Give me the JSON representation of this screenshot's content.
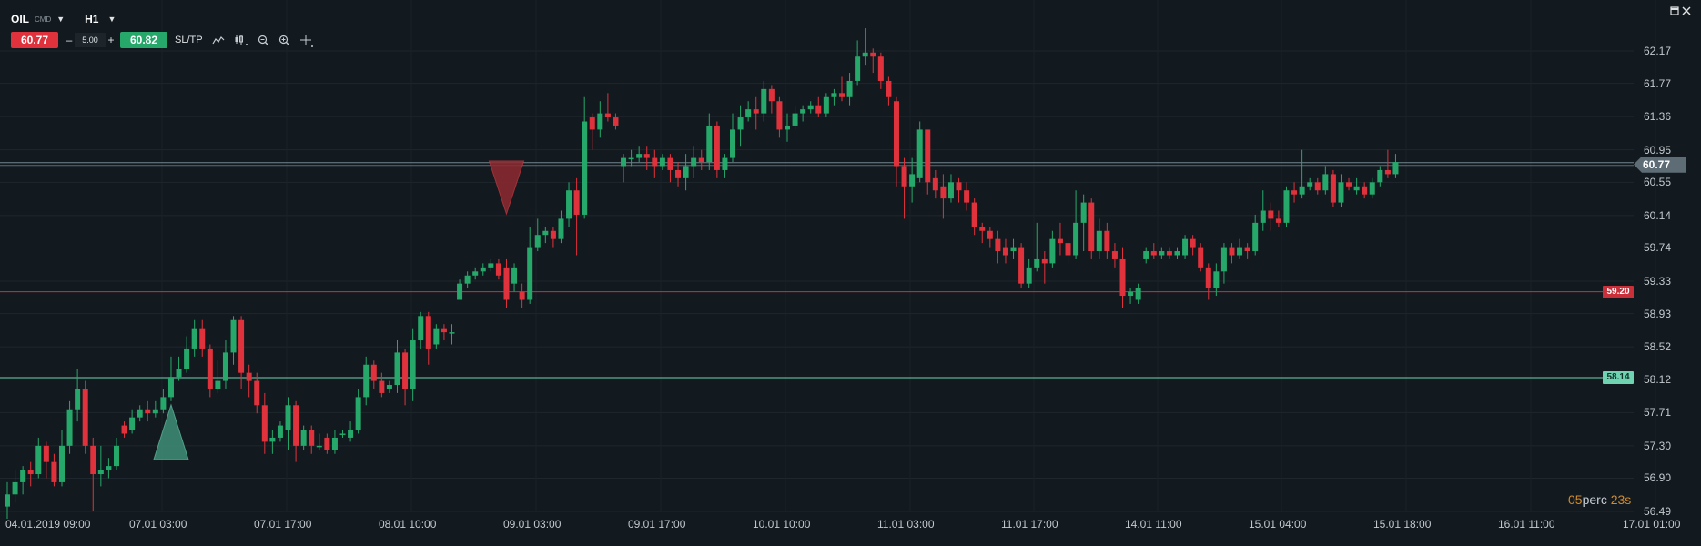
{
  "instrument": {
    "symbol": "OIL",
    "market": "CMD",
    "timeframe": "H1"
  },
  "trade_panel": {
    "sell_price": "60.77",
    "minus": "–",
    "quantity": "5.00",
    "plus": "+",
    "buy_price": "60.82",
    "sltp_label": "SL/TP"
  },
  "toolbar_icons": [
    "chart-type-icon",
    "indicators-icon",
    "zoom-out-icon",
    "zoom-in-icon",
    "crosshair-icon"
  ],
  "window_icons": [
    "maximize-icon",
    "close-icon"
  ],
  "countdown": {
    "minutes": "05",
    "minutes_unit": "perc",
    "seconds": "23s"
  },
  "current_price": "60.77",
  "colors": {
    "background": "#131a1f",
    "up": "#26a86a",
    "down": "#e0323c",
    "neutral_line": "#8aa0aa",
    "support_line": "#6fd3b2",
    "resistance_line": "#c9303a"
  },
  "chart_data": {
    "type": "candlestick",
    "price_axis_ticks": [
      "62.17",
      "61.77",
      "61.36",
      "60.95",
      "60.55",
      "60.14",
      "59.74",
      "59.33",
      "58.93",
      "58.52",
      "58.12",
      "57.71",
      "57.30",
      "56.90",
      "56.49"
    ],
    "time_axis_labels": [
      "04.01.2019 09:00",
      "07.01 03:00",
      "07.01 17:00",
      "08.01 10:00",
      "09.01 03:00",
      "09.01 17:00",
      "10.01 10:00",
      "11.01 03:00",
      "11.01 17:00",
      "14.01 11:00",
      "15.01 04:00",
      "15.01 18:00",
      "16.01 11:00",
      "17.01 01:00"
    ],
    "ylim": [
      56.49,
      62.3
    ],
    "horizontal_lines": [
      {
        "kind": "current",
        "price": 60.77,
        "label": "60.77"
      },
      {
        "kind": "resistance",
        "price": 59.2,
        "label": "59.20"
      },
      {
        "kind": "support",
        "price": 58.14,
        "label": "58.14"
      }
    ],
    "signals": [
      {
        "type": "buy",
        "index": 21
      },
      {
        "type": "sell",
        "index": 64
      }
    ],
    "candles": [
      [
        56.55,
        56.7,
        56.4,
        56.85
      ],
      [
        56.7,
        56.85,
        56.6,
        57.0
      ],
      [
        56.85,
        57.0,
        56.7,
        57.05
      ],
      [
        57.0,
        56.95,
        56.8,
        57.1
      ],
      [
        56.95,
        57.3,
        56.9,
        57.4
      ],
      [
        57.3,
        57.1,
        56.9,
        57.35
      ],
      [
        57.1,
        56.85,
        56.8,
        57.2
      ],
      [
        56.85,
        57.3,
        56.8,
        57.5
      ],
      [
        57.3,
        57.75,
        57.2,
        57.85
      ],
      [
        57.75,
        58.0,
        57.6,
        58.25
      ],
      [
        58.0,
        57.3,
        57.2,
        58.1
      ],
      [
        57.3,
        56.95,
        56.5,
        57.4
      ],
      [
        56.95,
        57.0,
        56.8,
        57.3
      ],
      [
        57.0,
        57.05,
        56.9,
        57.15
      ],
      [
        57.05,
        57.3,
        57.0,
        57.4
      ],
      [
        57.55,
        57.45,
        57.4,
        57.6
      ],
      [
        57.5,
        57.65,
        57.45,
        57.75
      ],
      [
        57.65,
        57.75,
        57.6,
        57.8
      ],
      [
        57.75,
        57.7,
        57.6,
        57.85
      ],
      [
        57.7,
        57.75,
        57.65,
        57.85
      ],
      [
        57.75,
        57.9,
        57.7,
        58.0
      ],
      [
        57.9,
        58.15,
        57.85,
        58.4
      ],
      [
        58.15,
        58.25,
        58.1,
        58.4
      ],
      [
        58.25,
        58.5,
        58.2,
        58.65
      ],
      [
        58.5,
        58.75,
        58.4,
        58.85
      ],
      [
        58.75,
        58.5,
        58.4,
        58.85
      ],
      [
        58.5,
        58.0,
        57.9,
        58.55
      ],
      [
        58.0,
        58.1,
        57.95,
        58.35
      ],
      [
        58.1,
        58.45,
        58.0,
        58.6
      ],
      [
        58.45,
        58.85,
        58.3,
        58.9
      ],
      [
        58.85,
        58.2,
        58.0,
        58.9
      ],
      [
        58.2,
        58.1,
        57.9,
        58.3
      ],
      [
        58.1,
        57.8,
        57.7,
        58.2
      ],
      [
        57.8,
        57.35,
        57.2,
        57.95
      ],
      [
        57.35,
        57.4,
        57.2,
        57.5
      ],
      [
        57.4,
        57.55,
        57.35,
        57.6
      ],
      [
        57.5,
        57.8,
        57.25,
        57.9
      ],
      [
        57.8,
        57.3,
        57.1,
        57.85
      ],
      [
        57.3,
        57.5,
        57.25,
        57.55
      ],
      [
        57.5,
        57.3,
        57.2,
        57.55
      ],
      [
        57.3,
        57.3,
        57.25,
        57.45
      ],
      [
        57.4,
        57.25,
        57.2,
        57.45
      ],
      [
        57.25,
        57.4,
        57.2,
        57.5
      ],
      [
        57.45,
        57.45,
        57.4,
        57.5
      ],
      [
        57.4,
        57.5,
        57.35,
        57.6
      ],
      [
        57.5,
        57.9,
        57.45,
        58.0
      ],
      [
        57.9,
        58.3,
        57.8,
        58.4
      ],
      [
        58.3,
        58.1,
        58.0,
        58.35
      ],
      [
        58.1,
        57.95,
        57.9,
        58.2
      ],
      [
        58.0,
        58.05,
        57.95,
        58.1
      ],
      [
        58.05,
        58.45,
        57.95,
        58.6
      ],
      [
        58.45,
        58.0,
        57.8,
        58.5
      ],
      [
        58.0,
        58.6,
        57.85,
        58.75
      ],
      [
        58.6,
        58.9,
        58.5,
        58.95
      ],
      [
        58.9,
        58.5,
        58.3,
        58.95
      ],
      [
        58.55,
        58.75,
        58.5,
        58.8
      ],
      [
        58.75,
        58.7,
        58.6,
        58.8
      ],
      [
        58.7,
        58.7,
        58.55,
        58.8
      ],
      [
        59.1,
        59.3,
        59.1,
        59.35
      ],
      [
        59.3,
        59.4,
        59.25,
        59.45
      ],
      [
        59.4,
        59.45,
        59.35,
        59.5
      ],
      [
        59.45,
        59.5,
        59.4,
        59.55
      ],
      [
        59.5,
        59.55,
        59.45,
        59.6
      ],
      [
        59.55,
        59.4,
        59.35,
        59.6
      ],
      [
        59.5,
        59.1,
        59.0,
        59.6
      ],
      [
        59.3,
        59.5,
        59.2,
        59.55
      ],
      [
        59.2,
        59.1,
        59.0,
        59.3
      ],
      [
        59.1,
        59.75,
        59.05,
        60.0
      ],
      [
        59.75,
        59.9,
        59.7,
        60.1
      ],
      [
        59.9,
        59.95,
        59.8,
        60.0
      ],
      [
        59.95,
        59.85,
        59.75,
        60.0
      ],
      [
        59.85,
        60.1,
        59.8,
        60.2
      ],
      [
        60.1,
        60.45,
        60.0,
        60.55
      ],
      [
        60.45,
        60.15,
        59.65,
        60.6
      ],
      [
        60.15,
        61.3,
        60.1,
        61.6
      ],
      [
        61.35,
        61.2,
        60.95,
        61.4
      ],
      [
        61.2,
        61.4,
        61.1,
        61.55
      ],
      [
        61.4,
        61.35,
        61.3,
        61.65
      ],
      [
        61.35,
        61.25,
        61.2,
        61.4
      ],
      [
        60.75,
        60.85,
        60.55,
        60.9
      ],
      [
        60.85,
        60.85,
        60.75,
        60.95
      ],
      [
        60.85,
        60.9,
        60.8,
        61.0
      ],
      [
        60.9,
        60.85,
        60.7,
        61.0
      ],
      [
        60.85,
        60.75,
        60.6,
        60.95
      ],
      [
        60.75,
        60.85,
        60.7,
        60.9
      ],
      [
        60.85,
        60.7,
        60.55,
        60.9
      ],
      [
        60.7,
        60.6,
        60.5,
        60.8
      ],
      [
        60.6,
        60.75,
        60.45,
        60.9
      ],
      [
        60.75,
        60.85,
        60.6,
        61.0
      ],
      [
        60.85,
        60.8,
        60.7,
        60.95
      ],
      [
        60.8,
        61.25,
        60.7,
        61.4
      ],
      [
        61.25,
        60.7,
        60.6,
        61.3
      ],
      [
        60.7,
        60.85,
        60.6,
        60.9
      ],
      [
        60.85,
        61.2,
        60.8,
        61.4
      ],
      [
        61.2,
        61.35,
        61.0,
        61.5
      ],
      [
        61.35,
        61.45,
        61.3,
        61.55
      ],
      [
        61.45,
        61.4,
        61.2,
        61.6
      ],
      [
        61.4,
        61.7,
        61.3,
        61.8
      ],
      [
        61.7,
        61.55,
        61.4,
        61.75
      ],
      [
        61.55,
        61.2,
        61.1,
        61.6
      ],
      [
        61.2,
        61.25,
        61.05,
        61.4
      ],
      [
        61.25,
        61.4,
        61.2,
        61.5
      ],
      [
        61.4,
        61.45,
        61.3,
        61.5
      ],
      [
        61.45,
        61.5,
        61.4,
        61.55
      ],
      [
        61.5,
        61.4,
        61.35,
        61.6
      ],
      [
        61.4,
        61.6,
        61.35,
        61.65
      ],
      [
        61.6,
        61.65,
        61.5,
        61.7
      ],
      [
        61.65,
        61.6,
        61.55,
        61.85
      ],
      [
        61.6,
        61.8,
        61.5,
        61.9
      ],
      [
        61.8,
        62.1,
        61.75,
        62.3
      ],
      [
        62.1,
        62.15,
        62.0,
        62.45
      ],
      [
        62.15,
        62.1,
        61.9,
        62.2
      ],
      [
        62.1,
        61.8,
        61.7,
        62.15
      ],
      [
        61.8,
        61.6,
        61.5,
        61.85
      ],
      [
        61.55,
        60.75,
        60.5,
        61.6
      ],
      [
        60.75,
        60.5,
        60.1,
        60.85
      ],
      [
        60.5,
        60.65,
        60.3,
        60.85
      ],
      [
        60.6,
        61.2,
        60.55,
        61.3
      ],
      [
        61.2,
        60.55,
        60.4,
        61.2
      ],
      [
        60.6,
        60.45,
        60.35,
        60.7
      ],
      [
        60.5,
        60.35,
        60.1,
        60.65
      ],
      [
        60.35,
        60.55,
        60.3,
        60.65
      ],
      [
        60.55,
        60.45,
        60.3,
        60.6
      ],
      [
        60.45,
        60.3,
        60.2,
        60.55
      ],
      [
        60.3,
        60.0,
        59.9,
        60.35
      ],
      [
        60.0,
        59.95,
        59.8,
        60.05
      ],
      [
        59.95,
        59.85,
        59.75,
        60.0
      ],
      [
        59.85,
        59.7,
        59.55,
        59.95
      ],
      [
        59.75,
        59.65,
        59.55,
        59.85
      ],
      [
        59.7,
        59.75,
        59.6,
        59.85
      ],
      [
        59.75,
        59.3,
        59.25,
        59.8
      ],
      [
        59.3,
        59.5,
        59.25,
        59.6
      ],
      [
        59.5,
        59.6,
        59.45,
        60.05
      ],
      [
        59.6,
        59.55,
        59.3,
        59.7
      ],
      [
        59.55,
        59.85,
        59.5,
        59.95
      ],
      [
        59.85,
        59.8,
        59.65,
        60.05
      ],
      [
        59.8,
        59.65,
        59.55,
        59.9
      ],
      [
        59.65,
        60.05,
        59.6,
        60.45
      ],
      [
        60.05,
        60.3,
        59.7,
        60.4
      ],
      [
        60.3,
        59.7,
        59.6,
        60.35
      ],
      [
        59.7,
        59.95,
        59.6,
        60.1
      ],
      [
        59.95,
        59.7,
        59.6,
        60.05
      ],
      [
        59.7,
        59.6,
        59.5,
        59.8
      ],
      [
        59.6,
        59.15,
        59.0,
        59.75
      ],
      [
        59.15,
        59.2,
        59.05,
        59.25
      ],
      [
        59.1,
        59.25,
        59.05,
        59.3
      ],
      [
        59.6,
        59.7,
        59.55,
        59.75
      ],
      [
        59.7,
        59.65,
        59.6,
        59.8
      ],
      [
        59.65,
        59.7,
        59.6,
        59.75
      ],
      [
        59.7,
        59.65,
        59.6,
        59.75
      ],
      [
        59.65,
        59.7,
        59.6,
        59.75
      ],
      [
        59.65,
        59.85,
        59.6,
        59.9
      ],
      [
        59.85,
        59.75,
        59.65,
        59.9
      ],
      [
        59.75,
        59.5,
        59.45,
        59.8
      ],
      [
        59.5,
        59.25,
        59.1,
        59.55
      ],
      [
        59.25,
        59.45,
        59.15,
        59.55
      ],
      [
        59.45,
        59.75,
        59.3,
        59.8
      ],
      [
        59.75,
        59.65,
        59.55,
        59.8
      ],
      [
        59.65,
        59.75,
        59.6,
        59.85
      ],
      [
        59.75,
        59.7,
        59.6,
        59.8
      ],
      [
        59.7,
        60.05,
        59.65,
        60.15
      ],
      [
        60.05,
        60.2,
        59.95,
        60.45
      ],
      [
        60.2,
        60.1,
        59.95,
        60.3
      ],
      [
        60.1,
        60.05,
        60.0,
        60.2
      ],
      [
        60.05,
        60.45,
        60.0,
        60.5
      ],
      [
        60.45,
        60.4,
        60.3,
        60.55
      ],
      [
        60.4,
        60.5,
        60.35,
        60.95
      ],
      [
        60.5,
        60.55,
        60.45,
        60.6
      ],
      [
        60.55,
        60.45,
        60.4,
        60.6
      ],
      [
        60.45,
        60.65,
        60.4,
        60.75
      ],
      [
        60.65,
        60.3,
        60.25,
        60.7
      ],
      [
        60.3,
        60.55,
        60.25,
        60.65
      ],
      [
        60.55,
        60.5,
        60.45,
        60.6
      ],
      [
        60.45,
        60.5,
        60.4,
        60.6
      ],
      [
        60.5,
        60.4,
        60.35,
        60.55
      ],
      [
        60.4,
        60.55,
        60.35,
        60.6
      ],
      [
        60.55,
        60.7,
        60.5,
        60.75
      ],
      [
        60.7,
        60.65,
        60.6,
        60.95
      ],
      [
        60.65,
        60.8,
        60.6,
        60.9
      ]
    ]
  }
}
